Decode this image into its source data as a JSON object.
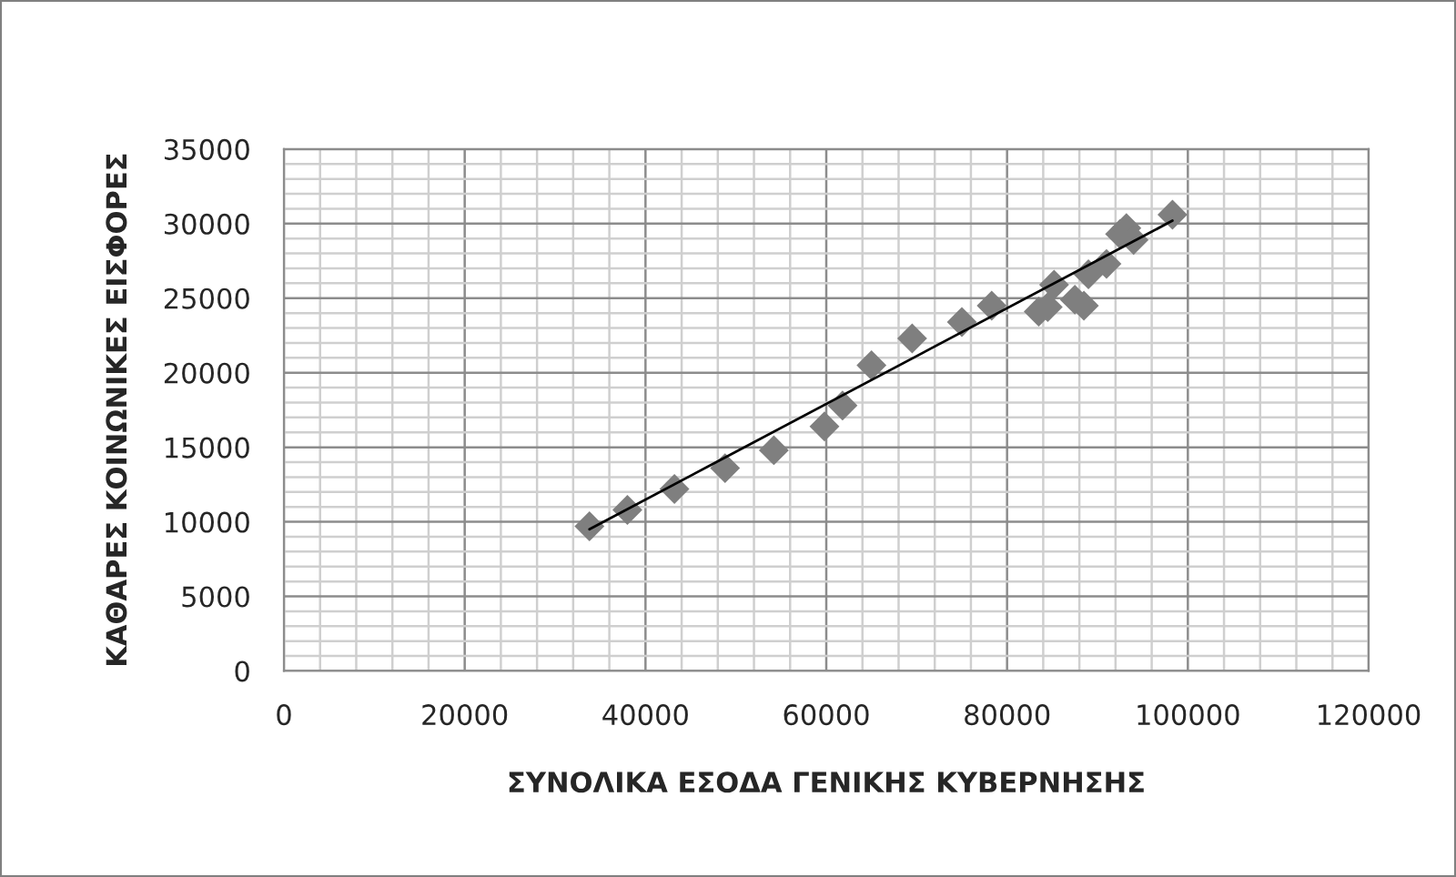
{
  "chart_data": {
    "type": "scatter",
    "xlabel": "ΣΥΝΟΛΙΚΑ ΕΣΟΔΑ ΓΕΝΙΚΗΣ ΚΥΒΕΡΝΗΣΗΣ",
    "ylabel": "ΚΑΘΑΡΕΣ ΚΟΙΝΩΝΙΚΕΣ ΕΙΣΦΟΡΕΣ",
    "series": [
      {
        "color": "#7f7f7f",
        "marker": "diamond",
        "x": [
          33800,
          38000,
          43200,
          48800,
          54200,
          59800,
          61800,
          65000,
          69500,
          75000,
          78300,
          83500,
          84500,
          85200,
          87500,
          88500,
          89000,
          91000,
          92500,
          93200,
          94000,
          98300
        ],
        "values": [
          9700,
          10800,
          12200,
          13600,
          14800,
          16400,
          17800,
          20500,
          22300,
          23400,
          24500,
          24100,
          24400,
          25900,
          24900,
          24500,
          26600,
          27300,
          29300,
          29700,
          28900,
          30600
        ]
      },
      {
        "type": "line",
        "color": "#000000",
        "marker": "none",
        "x": [
          33800,
          98300
        ],
        "values": [
          9500,
          30200
        ]
      }
    ],
    "xlim": [
      0,
      120000
    ],
    "xticks": [
      0,
      20000,
      40000,
      60000,
      80000,
      100000,
      120000
    ],
    "ylim": [
      0,
      35000
    ],
    "yticks": [
      0,
      5000,
      10000,
      15000,
      20000,
      25000,
      30000,
      35000
    ],
    "grid": true,
    "legend": false
  }
}
